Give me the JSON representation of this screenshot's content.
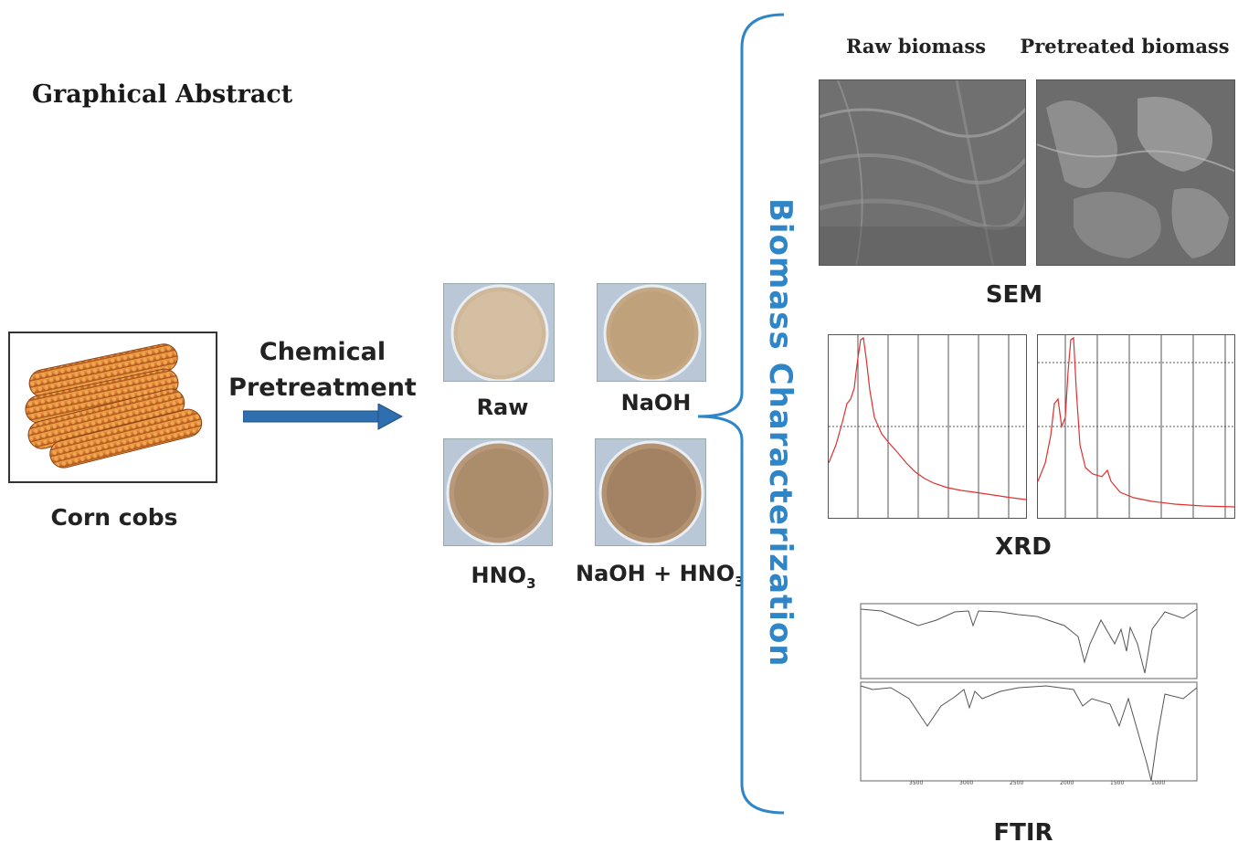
{
  "title": "Graphical Abstract",
  "feedstock": {
    "label": "Corn cobs",
    "image_icon": "corn-cobs-photo"
  },
  "process": {
    "line1": "Chemical",
    "line2": "Pretreatment",
    "arrow_color": "#2f6fb0"
  },
  "samples": [
    {
      "label": "Raw"
    },
    {
      "label": "NaOH"
    },
    {
      "label": "HNO",
      "sub": "3"
    },
    {
      "label": "NaOH + HNO",
      "sub": "3"
    }
  ],
  "characterization": {
    "heading": "Biomass Characterization",
    "color": "#2e86c9",
    "sem": {
      "col1": "Raw biomass",
      "col2": "Pretreated biomass",
      "label": "SEM"
    },
    "xrd": {
      "label": "XRD",
      "line_color": "#e03030"
    },
    "ftir": {
      "label": "FTIR"
    }
  }
}
